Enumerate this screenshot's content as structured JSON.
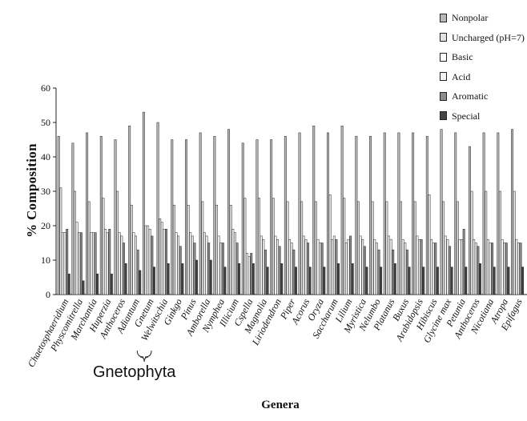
{
  "chart_data": {
    "type": "bar",
    "xlabel": "Genera",
    "ylabel": "% Composition",
    "ylim": [
      0,
      60
    ],
    "yticks": [
      "0",
      "10",
      "20",
      "30",
      "40",
      "50",
      "60"
    ],
    "legend_position": "top-right",
    "grid": false,
    "annotation": "Gnetophyta",
    "annotation_bracket_categories": [
      "Adiantum",
      "Gnetum"
    ],
    "categories": [
      "Chaetosphaeridium",
      "Physcomitrella",
      "Marchantia",
      "Huperzia",
      "Anthoceros",
      "Adiantum",
      "Gnetum",
      "Welwitschia",
      "Ginkgo",
      "Pinus",
      "Amborella",
      "Nymphea",
      "Illicium",
      "Cspella",
      "Magnolia",
      "Liriodendron",
      "Piper",
      "Acorus",
      "Oryza",
      "Saccharum",
      "Lilium",
      "Myristica",
      "Nelumbo",
      "Platanus",
      "Buxus",
      "Arabidopsis",
      "Hibiscus",
      "Glycine max",
      "Petunia",
      "Anthoceros",
      "Nicotiana",
      "Atropa",
      "Epifagus"
    ],
    "series": [
      {
        "name": "Nonpolar",
        "color": "#b8b8b8",
        "values": [
          46,
          44,
          47,
          46,
          45,
          49,
          53,
          50,
          45,
          45,
          47,
          46,
          48,
          44,
          45,
          45,
          46,
          47,
          49,
          47,
          49,
          46,
          46,
          47,
          47,
          47,
          46,
          48,
          47,
          43,
          47,
          47,
          48
        ]
      },
      {
        "name": "Uncharged (pH=7)",
        "color": "#e2e2e2",
        "values": [
          31,
          30,
          27,
          28,
          30,
          26,
          20,
          22,
          26,
          26,
          27,
          26,
          26,
          28,
          28,
          28,
          27,
          27,
          27,
          29,
          28,
          27,
          27,
          27,
          27,
          27,
          29,
          27,
          27,
          30,
          30,
          30,
          30
        ]
      },
      {
        "name": "Basic",
        "color": "#ffffff",
        "values": [
          18,
          21,
          18,
          19,
          18,
          18,
          20,
          21,
          18,
          18,
          18,
          17,
          19,
          12,
          17,
          17,
          16,
          17,
          16,
          16,
          15,
          17,
          16,
          17,
          16,
          17,
          16,
          17,
          16,
          16,
          16,
          16,
          16
        ]
      },
      {
        "name": "Acid",
        "color": "#f2f2f2",
        "values": [
          18,
          18,
          18,
          18,
          17,
          17,
          19,
          19,
          17,
          17,
          17,
          15,
          18,
          11,
          16,
          16,
          15,
          16,
          15,
          17,
          16,
          16,
          15,
          16,
          15,
          16,
          15,
          16,
          16,
          15,
          15,
          15,
          15
        ]
      },
      {
        "name": "Aromatic",
        "color": "#8c8c8c",
        "values": [
          19,
          18,
          18,
          19,
          15,
          13,
          17,
          19,
          14,
          15,
          15,
          15,
          15,
          12,
          13,
          14,
          13,
          15,
          15,
          16,
          17,
          14,
          13,
          13,
          13,
          16,
          15,
          14,
          19,
          14,
          15,
          15,
          15
        ]
      },
      {
        "name": "Special",
        "color": "#444444",
        "values": [
          6,
          4,
          6,
          6,
          9,
          7,
          8,
          9,
          9,
          10,
          10,
          8,
          9,
          9,
          8,
          9,
          8,
          8,
          8,
          9,
          9,
          8,
          8,
          9,
          8,
          8,
          8,
          8,
          8,
          9,
          8,
          8,
          8
        ]
      }
    ]
  }
}
